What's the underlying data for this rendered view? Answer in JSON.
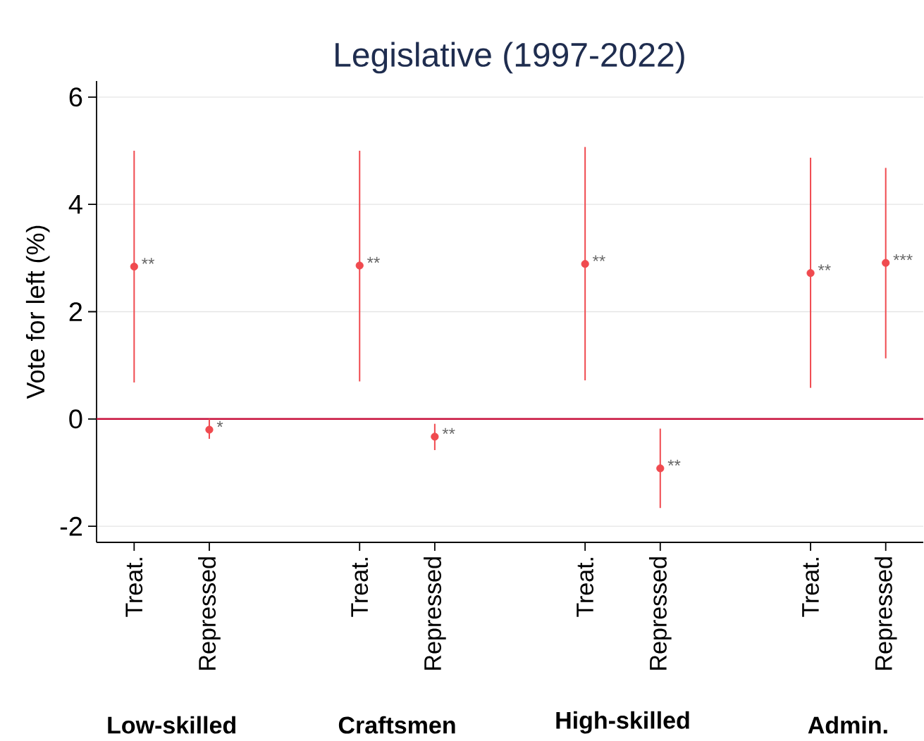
{
  "chart_data": {
    "type": "scatter",
    "title": "Legislative (1997-2022)",
    "ylabel": "Vote for left (%)",
    "categories": [
      "Treat.",
      "Repressed",
      null,
      "Treat.",
      "Repressed",
      null,
      "Treat.",
      "Repressed",
      null,
      "Treat.",
      "Repressed"
    ],
    "values": [
      2.84,
      -0.2,
      null,
      2.86,
      -0.33,
      null,
      2.89,
      -0.92,
      null,
      2.72,
      2.91
    ],
    "errors": [
      [
        0.68,
        5.0
      ],
      [
        -0.37,
        0.0
      ],
      null,
      [
        0.7,
        5.0
      ],
      [
        -0.58,
        -0.09
      ],
      null,
      [
        0.72,
        5.07
      ],
      [
        -1.66,
        -0.18
      ],
      null,
      [
        0.58,
        4.87
      ],
      [
        1.13,
        4.68
      ]
    ],
    "value_labels": [
      "**",
      "*",
      null,
      "**",
      "**",
      null,
      "**",
      "**",
      null,
      "**",
      "***"
    ],
    "color": "#f04a4f",
    "marker": "circle",
    "ylim": [
      -2.3,
      6.3
    ],
    "yticks": [
      -2,
      0,
      2,
      4,
      6
    ],
    "grid": "y",
    "ref_lines": [
      {
        "axis": "y",
        "value": 0,
        "color": "#c8103c"
      }
    ],
    "annotations": [
      "Low-skilled",
      "Craftsmen",
      "High-skilled",
      "Admin."
    ]
  }
}
